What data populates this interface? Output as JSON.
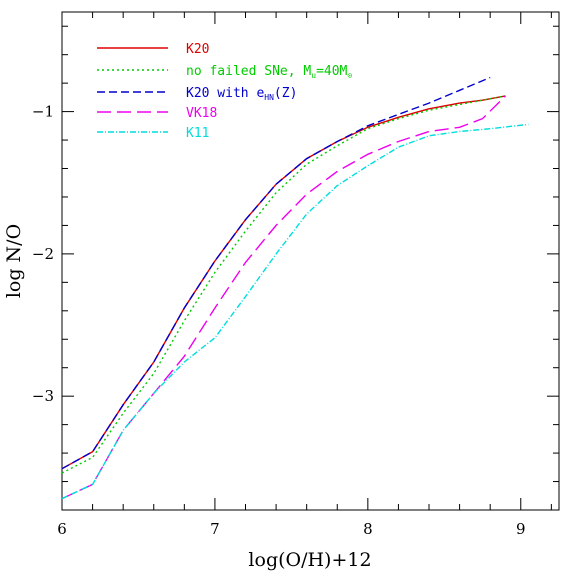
{
  "chart_data": {
    "type": "line",
    "xlabel": "log(O/H)+12",
    "ylabel": "log N/O",
    "xlim": [
      6.0,
      9.25
    ],
    "ylim": [
      -3.8,
      -0.3
    ],
    "x_ticks": [
      "6",
      "7",
      "8",
      "9"
    ],
    "y_ticks": [
      "−1",
      "−2",
      "−3"
    ],
    "legend_placement": "top-left",
    "series": [
      {
        "name": "K20",
        "legend_main": "K20",
        "color": "#dd0000",
        "dash": "solid",
        "x": [
          6.0,
          6.2,
          6.4,
          6.6,
          6.8,
          7.0,
          7.2,
          7.4,
          7.6,
          7.8,
          8.0,
          8.2,
          8.4,
          8.6,
          8.75,
          8.9
        ],
        "y": [
          -3.51,
          -3.39,
          -3.06,
          -2.76,
          -2.38,
          -2.05,
          -1.76,
          -1.51,
          -1.33,
          -1.21,
          -1.11,
          -1.04,
          -0.98,
          -0.94,
          -0.92,
          -0.89
        ]
      },
      {
        "name": "no failed SNe, M_u=40M_⊙",
        "legend_main": "no failed SNe, M",
        "legend_sub": "u",
        "legend_after": "=40M",
        "legend_sun": "⊙",
        "color": "#00cc00",
        "dash": "2,3",
        "x": [
          6.0,
          6.2,
          6.4,
          6.6,
          6.8,
          7.0,
          7.2,
          7.4,
          7.6,
          7.8,
          8.0,
          8.2,
          8.4,
          8.6,
          8.75,
          8.9
        ],
        "y": [
          -3.54,
          -3.43,
          -3.12,
          -2.84,
          -2.47,
          -2.13,
          -1.84,
          -1.57,
          -1.37,
          -1.24,
          -1.12,
          -1.05,
          -0.99,
          -0.95,
          -0.92,
          -0.89
        ]
      },
      {
        "name": "K20 with e_HN(Z)",
        "legend_main": "K20 with e",
        "legend_sub": "HN",
        "legend_after": "(Z)",
        "color": "#0000cc",
        "dash": "8,4",
        "x": [
          6.0,
          6.2,
          6.4,
          6.6,
          6.8,
          7.0,
          7.2,
          7.4,
          7.6,
          7.8,
          8.0,
          8.2,
          8.4,
          8.6,
          8.8
        ],
        "y": [
          -3.51,
          -3.39,
          -3.06,
          -2.76,
          -2.38,
          -2.05,
          -1.76,
          -1.51,
          -1.33,
          -1.21,
          -1.1,
          -1.02,
          -0.94,
          -0.85,
          -0.76
        ]
      },
      {
        "name": "VK18",
        "legend_main": "VK18",
        "color": "#ee00ee",
        "dash": "14,6",
        "x": [
          6.0,
          6.2,
          6.4,
          6.6,
          6.8,
          7.0,
          7.2,
          7.4,
          7.6,
          7.8,
          8.0,
          8.2,
          8.4,
          8.6,
          8.75,
          8.9
        ],
        "y": [
          -3.72,
          -3.62,
          -3.24,
          -2.98,
          -2.72,
          -2.38,
          -2.06,
          -1.8,
          -1.58,
          -1.42,
          -1.3,
          -1.21,
          -1.14,
          -1.11,
          -1.05,
          -0.89
        ]
      },
      {
        "name": "K11",
        "legend_main": "K11",
        "color": "#00dddd",
        "dash": "6,2,1,2",
        "x": [
          6.0,
          6.2,
          6.4,
          6.6,
          6.8,
          7.0,
          7.2,
          7.4,
          7.6,
          7.8,
          8.0,
          8.2,
          8.4,
          8.6,
          8.8,
          9.05
        ],
        "y": [
          -3.72,
          -3.62,
          -3.24,
          -2.98,
          -2.76,
          -2.59,
          -2.3,
          -2.0,
          -1.72,
          -1.52,
          -1.38,
          -1.25,
          -1.17,
          -1.14,
          -1.12,
          -1.09
        ]
      }
    ]
  }
}
